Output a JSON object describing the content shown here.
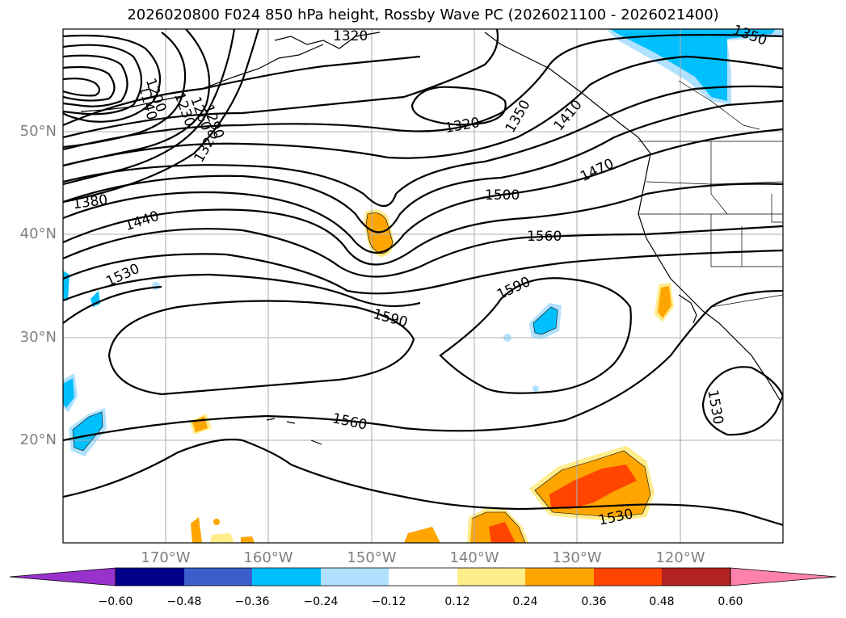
{
  "title": "2026020800 F024 850 hPa height, Rossby Wave PC (2026021100 - 2026021400)",
  "lat_labels": [
    "50°N",
    "40°N",
    "30°N",
    "20°N"
  ],
  "lon_labels": [
    "170°W",
    "160°W",
    "150°W",
    "140°W",
    "130°W",
    "120°W"
  ],
  "contour_labels": [
    "1320",
    "1350",
    "1410",
    "1470",
    "1500",
    "1560",
    "1590",
    "1590",
    "1560",
    "1530",
    "1530",
    "1380",
    "1440",
    "1530",
    "1350",
    "1320",
    "1320",
    "1200",
    "1140",
    "1230",
    "1260",
    "1290"
  ],
  "colorbar": {
    "ticks": [
      "−0.60",
      "−0.48",
      "−0.36",
      "−0.24",
      "−0.12",
      "0.12",
      "0.24",
      "0.36",
      "0.48",
      "0.60"
    ],
    "colors": [
      "#9932cc",
      "#00008b",
      "#3a5fcd",
      "#00bfff",
      "#b0e2ff",
      "#ffffff",
      "#ffec8b",
      "#ffa500",
      "#ff4500",
      "#b22222",
      "#ff82ab"
    ]
  },
  "shading_colors": {
    "neg_light": "#b0e2ff",
    "neg_mid": "#00bfff",
    "pos_light": "#ffec8b",
    "pos_mid": "#ffa500",
    "pos_strong": "#ff4500"
  }
}
